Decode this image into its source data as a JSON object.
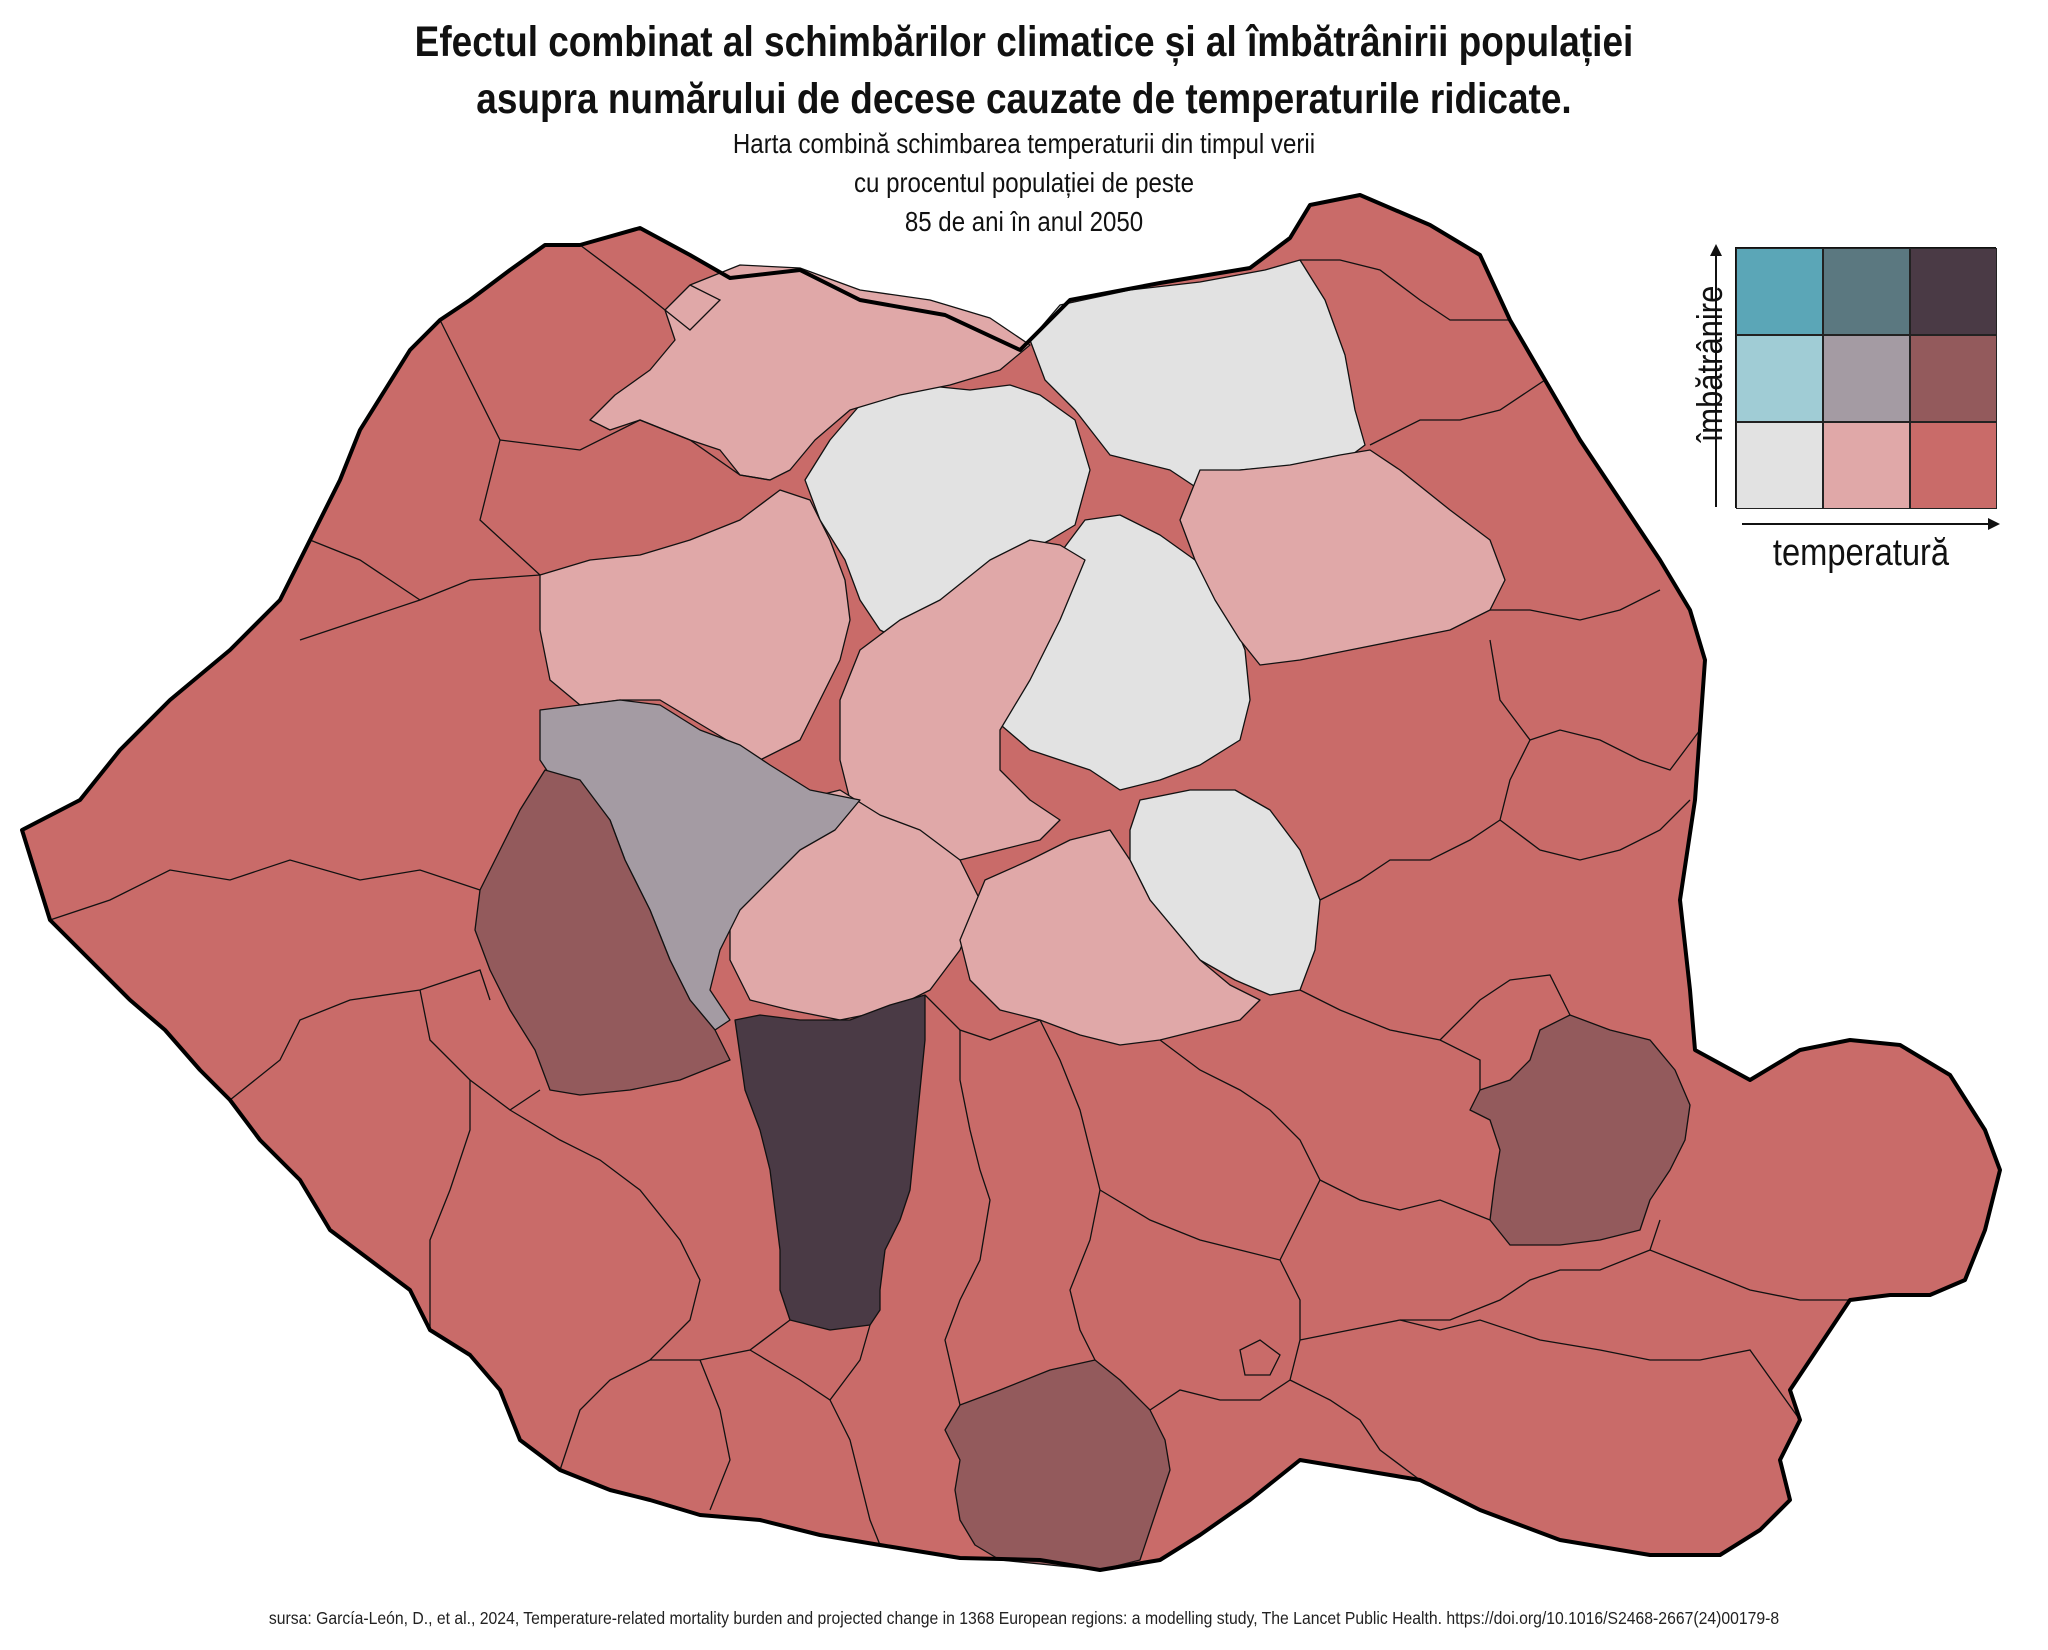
{
  "title": {
    "line1": "Efectul combinat al schimbărilor climatice și al îmbătrânirii populației",
    "line2": "asupra numărului de decese cauzate de temperaturile ridicate."
  },
  "subtitle": {
    "line1": "Harta combină schimbarea temperaturii din timpul verii",
    "line2": "cu procentul populației de peste",
    "line3": "85 de ani în anul 2050"
  },
  "legend": {
    "y_label": "îmbătrânire",
    "x_label": "temperatură",
    "colors": {
      "low_low": "#e2e2e2",
      "low_mid": "#e0a8a8",
      "low_high": "#c96b69",
      "mid_low": "#a0ccd5",
      "mid_mid": "#a49ba3",
      "mid_high": "#935a5c",
      "high_low": "#5ba6b7",
      "high_mid": "#5b7880",
      "high_high": "#4a3a45"
    }
  },
  "source": "sursa: García-León, D., et al., 2024, Temperature-related mortality burden and projected change in 1368 European regions: a modelling study, The Lancet Public Health. https://doi.org/10.1016/S2468-2667(24)00179-8"
}
